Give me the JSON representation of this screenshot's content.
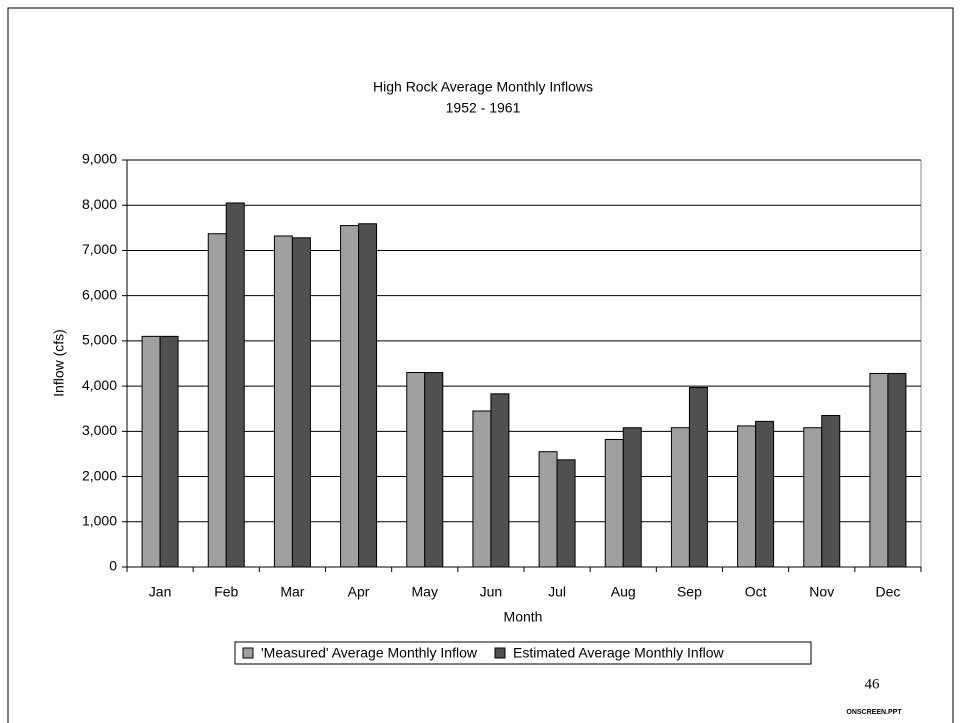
{
  "chart_data": {
    "type": "bar",
    "title": "High Rock Average Monthly Inflows",
    "subtitle": "1952 - 1961",
    "x_label": "Month",
    "y_label": "Inflow (cfs)",
    "categories": [
      "Jan",
      "Feb",
      "Mar",
      "Apr",
      "May",
      "Jun",
      "Jul",
      "Aug",
      "Sep",
      "Oct",
      "Nov",
      "Dec"
    ],
    "series": [
      {
        "name": "'Measured' Average Monthly Inflow",
        "color": "#a0a0a0",
        "values": [
          5100,
          7370,
          7320,
          7550,
          4300,
          3450,
          2550,
          2820,
          3080,
          3120,
          3080,
          4280
        ]
      },
      {
        "name": "Estimated Average Monthly Inflow",
        "color": "#505050",
        "values": [
          5100,
          8050,
          7280,
          7590,
          4300,
          3830,
          2370,
          3080,
          3970,
          3220,
          3350,
          4280
        ]
      }
    ],
    "ylim": [
      0,
      9000
    ],
    "yticks": [
      0,
      {
        "value": 1000,
        "label": "1,000"
      },
      {
        "value": 2000,
        "label": "2,000"
      },
      {
        "value": 3000,
        "label": "3,000"
      },
      {
        "value": 4000,
        "label": "4,000"
      },
      {
        "value": 5000,
        "label": "5,000"
      },
      {
        "value": 6000,
        "label": "6,000"
      },
      {
        "value": 7000,
        "label": "7,000"
      },
      {
        "value": 8000,
        "label": "8,000"
      },
      {
        "value": 9000,
        "label": "9,000"
      }
    ],
    "grid": true,
    "legend": "bottom"
  },
  "page_number": "46",
  "footer": "ONSCREEN.PPT"
}
